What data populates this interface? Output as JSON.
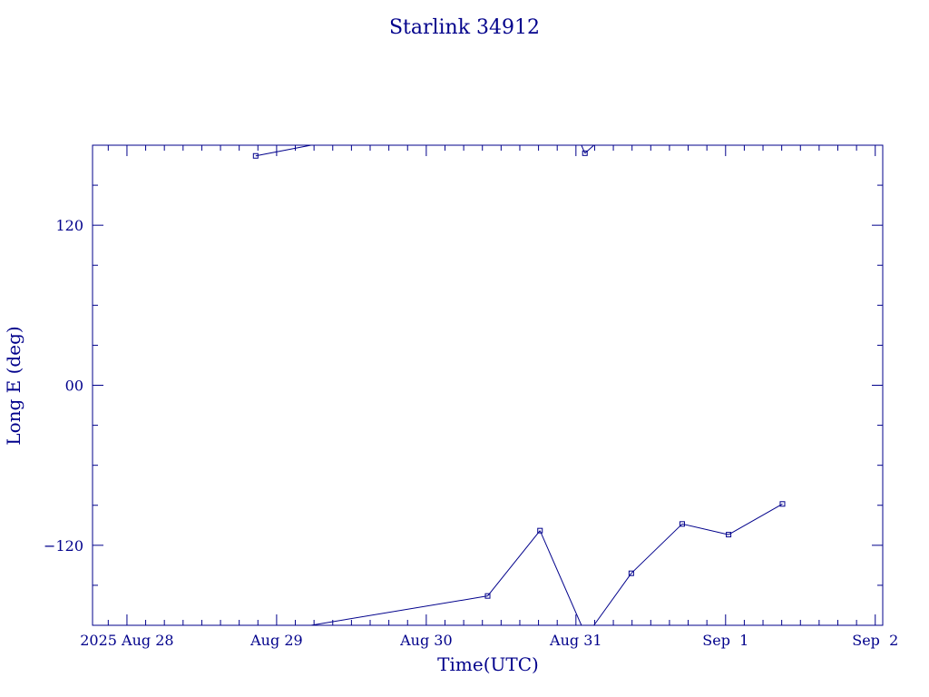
{
  "colors": {
    "ink": "#00008b",
    "background": "#ffffff"
  },
  "chart_data": {
    "type": "line",
    "title": "Starlink 34912",
    "xlabel": "Time(UTC)",
    "ylabel": "Long E (deg)",
    "x_tick_labels": [
      "2025 Aug 28",
      "Aug 29",
      "Aug 30",
      "Aug 31",
      "Sep  1",
      "Sep  2"
    ],
    "x_tick_values": [
      0,
      1,
      2,
      3,
      4,
      5
    ],
    "y_tick_labels": [
      "120",
      "00",
      "−120"
    ],
    "y_tick_values": [
      120,
      0,
      -120
    ],
    "x_range_days": [
      -0.23,
      5.05
    ],
    "ylim": [
      -180,
      180
    ],
    "grid": false,
    "marker": "small-square",
    "wraps_at_180": true,
    "series": [
      {
        "x_days_from_aug28": [
          0.86,
          1.23,
          2.41,
          2.76,
          3.06,
          3.12,
          3.37,
          3.71,
          4.02,
          4.38
        ],
        "values": [
          172,
          180,
          -158,
          -109,
          174,
          -180,
          -141,
          -104,
          -112,
          -89
        ]
      }
    ]
  }
}
